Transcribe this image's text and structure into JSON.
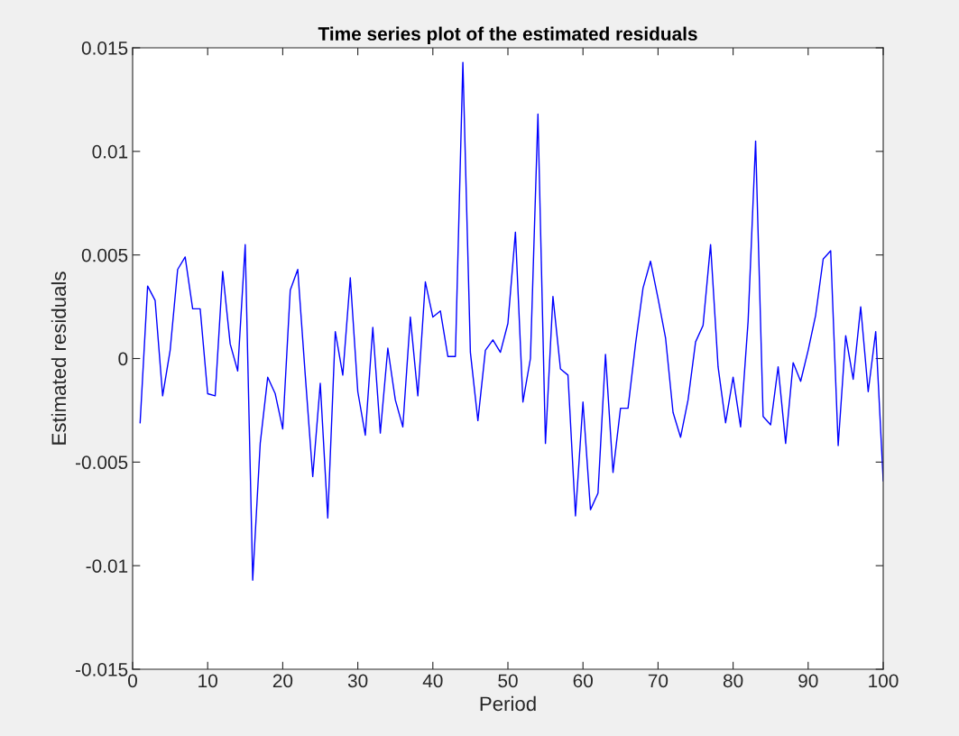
{
  "chart_data": {
    "type": "line",
    "title": "Time series plot of the estimated residuals",
    "xlabel": "Period",
    "ylabel": "Estimated residuals",
    "x": [
      1,
      2,
      3,
      4,
      5,
      6,
      7,
      8,
      9,
      10,
      11,
      12,
      13,
      14,
      15,
      16,
      17,
      18,
      19,
      20,
      21,
      22,
      23,
      24,
      25,
      26,
      27,
      28,
      29,
      30,
      31,
      32,
      33,
      34,
      35,
      36,
      37,
      38,
      39,
      40,
      41,
      42,
      43,
      44,
      45,
      46,
      47,
      48,
      49,
      50,
      51,
      52,
      53,
      54,
      55,
      56,
      57,
      58,
      59,
      60,
      61,
      62,
      63,
      64,
      65,
      66,
      67,
      68,
      69,
      70,
      71,
      72,
      73,
      74,
      75,
      76,
      77,
      78,
      79,
      80,
      81,
      82,
      83,
      84,
      85,
      86,
      87,
      88,
      89,
      90,
      91,
      92,
      93,
      94,
      95,
      96,
      97,
      98,
      99,
      100
    ],
    "series": [
      {
        "color": "#0000ff",
        "values": [
          -0.0031,
          0.0035,
          0.0028,
          -0.0018,
          0.0004,
          0.0043,
          0.0049,
          0.0024,
          0.0024,
          -0.0017,
          -0.0018,
          0.0042,
          0.0007,
          -0.0006,
          0.0055,
          -0.0107,
          -0.0041,
          -0.0009,
          -0.0017,
          -0.0034,
          0.0033,
          0.0043,
          -0.0008,
          -0.0057,
          -0.0012,
          -0.0077,
          0.0013,
          -0.0008,
          0.0039,
          -0.0016,
          -0.0037,
          0.0015,
          -0.0036,
          0.0005,
          -0.002,
          -0.0033,
          0.002,
          -0.0018,
          0.0037,
          0.002,
          0.0023,
          0.0001,
          0.0001,
          0.0143,
          0.0003,
          -0.003,
          0.0004,
          0.0009,
          0.0003,
          0.0017,
          0.0061,
          -0.0021,
          0.0,
          0.0118,
          -0.0041,
          0.003,
          -0.0005,
          -0.0008,
          -0.0076,
          -0.0021,
          -0.0073,
          -0.0065,
          0.0002,
          -0.0055,
          -0.0024,
          -0.0024,
          0.0007,
          0.0034,
          0.0047,
          0.0029,
          0.001,
          -0.0026,
          -0.0038,
          -0.002,
          0.0008,
          0.0016,
          0.0055,
          -0.0004,
          -0.0031,
          -0.0009,
          -0.0033,
          0.0018,
          0.0105,
          -0.0028,
          -0.0032,
          -0.0004,
          -0.0041,
          -0.0002,
          -0.0011,
          0.0004,
          0.0021,
          0.0048,
          0.0052,
          -0.0042,
          0.0011,
          -0.001,
          0.0025,
          -0.0016,
          0.0013,
          -0.0059
        ]
      }
    ],
    "xlim": [
      0,
      100
    ],
    "xticks": [
      0,
      10,
      20,
      30,
      40,
      50,
      60,
      70,
      80,
      90,
      100
    ],
    "ylim": [
      -0.015,
      0.015
    ],
    "yticks": [
      -0.015,
      -0.01,
      -0.005,
      0,
      0.005,
      0.01,
      0.015
    ],
    "grid": false,
    "legend": false,
    "marker": "none",
    "line_style": "solid"
  }
}
